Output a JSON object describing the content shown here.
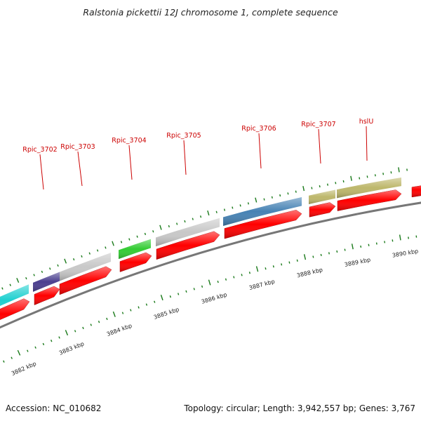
{
  "title": "Ralstonia pickettii 12J chromosome 1, complete sequence",
  "colors": {
    "label_red": "#cc0000",
    "arrow_red": "#ff0000",
    "tick_green": "#1a7a1a",
    "backbone_gray": "#777777"
  },
  "genes": [
    {
      "label": "Rpic_3702",
      "color": "#4b3f8f"
    },
    {
      "label": "Rpic_3703",
      "color": "#c8c8c8"
    },
    {
      "label": "Rpic_3704",
      "color": "#33cc33"
    },
    {
      "label": "Rpic_3705",
      "color": "#c8c8c8"
    },
    {
      "label": "Rpic_3706",
      "color": "#4682b4"
    },
    {
      "label": "Rpic_3707",
      "color": "#bdb76b"
    },
    {
      "label": "hslU",
      "color": "#bdb76b"
    }
  ],
  "unlabeled_gene_color": "#1fd0d0",
  "kbp_labels": [
    "3882 kbp",
    "3883 kbp",
    "3884 kbp",
    "3885 kbp",
    "3886 kbp",
    "3887 kbp",
    "3888 kbp",
    "3889 kbp",
    "3890 kbp"
  ],
  "footer": {
    "accession": "Accession: NC_010682",
    "topology": "Topology: circular; Length: 3,942,557 bp; Genes: 3,767"
  }
}
